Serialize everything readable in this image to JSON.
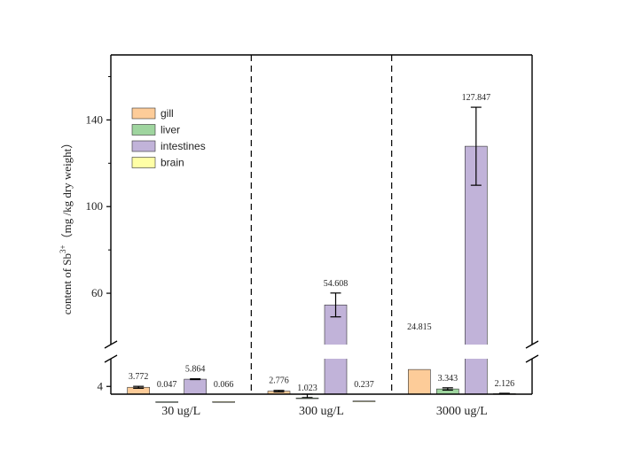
{
  "chart_data": {
    "type": "bar",
    "title": "",
    "ylabel": "content of Sb",
    "ylabel_superscript": "3+",
    "ylabel_unit": "（mg /kg dry weight）",
    "xlabel": "",
    "categories": [
      "30 ug/L",
      "300 ug/L",
      "3000 ug/L"
    ],
    "series": [
      {
        "name": "gill",
        "color": "#FDCC99",
        "values": [
          3.772,
          2.776,
          24.815
        ],
        "errors": [
          0.25,
          0.2,
          null
        ]
      },
      {
        "name": "liver",
        "color": "#9FD59F",
        "values": [
          0.047,
          1.023,
          3.343
        ],
        "errors": [
          null,
          0.1,
          0.3
        ]
      },
      {
        "name": "intestines",
        "color": "#C1B3D9",
        "values": [
          5.864,
          54.608,
          127.847
        ],
        "errors": [
          0.1,
          5.5,
          18.0
        ]
      },
      {
        "name": "brain",
        "color": "#FFFFA6",
        "values": [
          0.066,
          0.237,
          2.126
        ],
        "errors": [
          null,
          null,
          0.1
        ]
      }
    ],
    "value_labels": [
      [
        "3.772",
        "0.047",
        "5.864",
        "0.066"
      ],
      [
        "2.776",
        "1.023",
        "54.608",
        "0.237"
      ],
      [
        "24.815",
        "3.343",
        "127.847",
        "2.126"
      ]
    ],
    "yticks": [
      4,
      60,
      100,
      140
    ],
    "ylim_lower": [
      2,
      10
    ],
    "ylim_upper": [
      40,
      170
    ],
    "axis_break": true,
    "separators": "dashed vertical lines between groups",
    "legend_position": "upper-left"
  }
}
